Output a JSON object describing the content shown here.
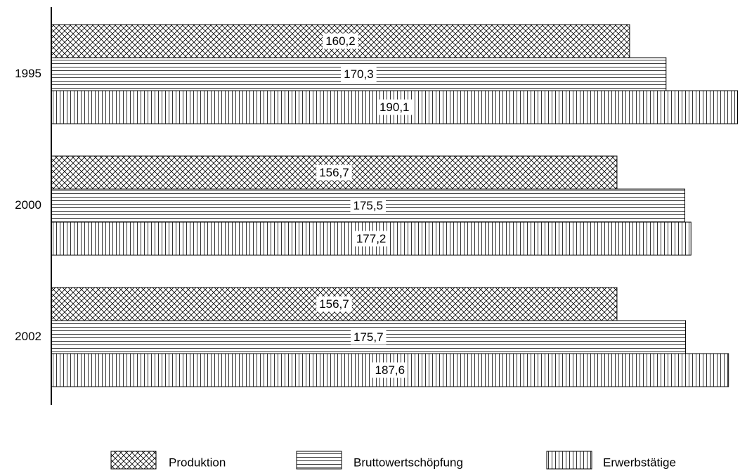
{
  "chart_data": {
    "type": "hbar",
    "categories": [
      "1995",
      "2000",
      "2002"
    ],
    "series": [
      {
        "name": "Produktion",
        "pattern": "crosshatch",
        "color": "#000000",
        "values": [
          160.2,
          156.7,
          156.7
        ],
        "value_labels": [
          "160,2",
          "156,7",
          "156,7"
        ]
      },
      {
        "name": "Bruttowertschöpfung",
        "pattern": "horizontal",
        "color": "#000000",
        "values": [
          170.3,
          175.5,
          175.7
        ],
        "value_labels": [
          "170,3",
          "175,5",
          "175,7"
        ]
      },
      {
        "name": "Erwerbstätige",
        "pattern": "vertical",
        "color": "#000000",
        "values": [
          190.1,
          177.2,
          187.6
        ],
        "value_labels": [
          "190,1",
          "177,2",
          "187,6"
        ]
      }
    ],
    "xlim": [
      0,
      190
    ]
  }
}
